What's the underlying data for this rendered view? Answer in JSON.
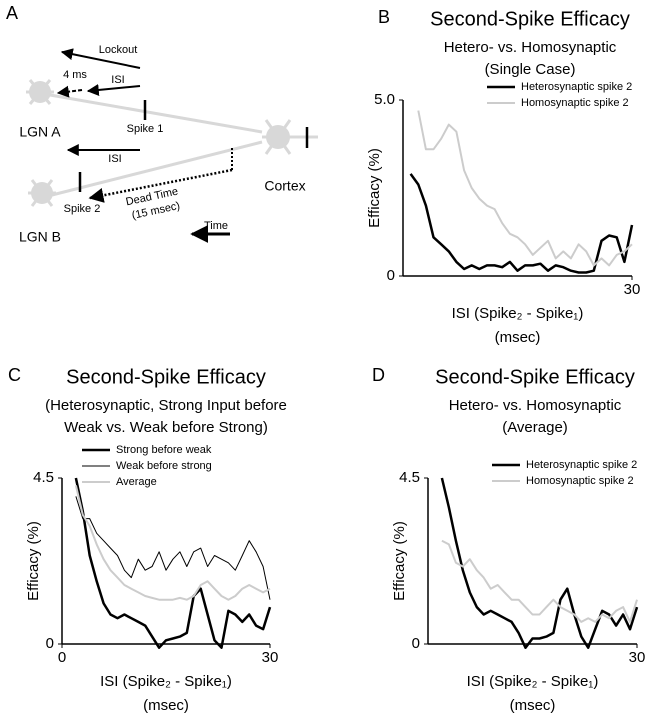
{
  "diagram": {
    "panel": "A",
    "lockout": "Lockout",
    "four_ms": "4 ms",
    "isi_top": "ISI",
    "spike1": "Spike 1",
    "lgn_a": "LGN A",
    "isi_mid": "ISI",
    "cortex": "Cortex",
    "spike2": "Spike 2",
    "dead_time": "Dead Time",
    "dead_time_ms": "(15 msec)",
    "lgn_b": "LGN B",
    "time": "Time"
  },
  "chart_data": [
    {
      "type": "line",
      "panel": "B",
      "title": "Second-Spike Efficacy",
      "subtitle": [
        "Hetero- vs. Homosynaptic",
        "(Single Case)"
      ],
      "y_label": "Efficacy (%)",
      "x_label": [
        "ISI (Spike₂ - Spike₁)",
        "(msec)"
      ],
      "x": [
        1,
        2,
        3,
        4,
        5,
        6,
        7,
        8,
        9,
        10,
        11,
        12,
        13,
        14,
        15,
        16,
        17,
        18,
        19,
        20,
        21,
        22,
        23,
        24,
        25,
        26,
        27,
        28,
        29,
        30
      ],
      "xlim": [
        0,
        30
      ],
      "xticks": [
        30
      ],
      "ylim": [
        0,
        5
      ],
      "yticks": [
        0,
        {
          "value": 5,
          "label": "5.0"
        }
      ],
      "legend": "upper right",
      "series": [
        {
          "name": "Heterosynaptic spike 2",
          "color": "#000000",
          "line_width": 2.5,
          "values": [
            2.9,
            2.6,
            2.0,
            1.1,
            0.9,
            0.7,
            0.4,
            0.2,
            0.3,
            0.2,
            0.3,
            0.3,
            0.25,
            0.4,
            0.15,
            0.3,
            0.3,
            0.35,
            0.15,
            0.3,
            0.25,
            0.15,
            0.1,
            0.1,
            0.15,
            1.0,
            1.15,
            1.1,
            0.4,
            1.45
          ]
        },
        {
          "name": "Homosynaptic spike 2",
          "color": "#cccccc",
          "line_width": 2,
          "values": [
            null,
            4.7,
            3.6,
            3.6,
            3.9,
            4.3,
            4.1,
            3.0,
            2.5,
            2.2,
            2.0,
            1.9,
            1.5,
            1.2,
            1.1,
            0.9,
            0.6,
            0.8,
            1.0,
            0.5,
            0.7,
            0.5,
            0.9,
            0.7,
            0.3,
            0.5,
            0.3,
            0.6,
            0.7,
            0.9
          ]
        }
      ]
    },
    {
      "type": "line",
      "panel": "C",
      "title": "Second-Spike Efficacy",
      "subtitle": [
        "(Heterosynaptic, Strong Input before",
        "Weak vs. Weak before Strong)"
      ],
      "y_label": "Efficacy (%)",
      "x_label": [
        "ISI (Spike₂ - Spike₁)",
        "(msec)"
      ],
      "x": [
        2,
        3,
        4,
        5,
        6,
        7,
        8,
        9,
        10,
        11,
        12,
        13,
        14,
        15,
        16,
        17,
        18,
        19,
        20,
        21,
        22,
        23,
        24,
        25,
        26,
        27,
        28,
        29,
        30
      ],
      "xlim": [
        0,
        30
      ],
      "xticks": [
        0,
        30
      ],
      "ylim": [
        0,
        4.5
      ],
      "yticks": [
        0,
        4.5
      ],
      "legend": "upper left",
      "series": [
        {
          "name": "Strong before weak",
          "color": "#000000",
          "line_width": 2.5,
          "values": [
            4.5,
            3.6,
            2.4,
            1.7,
            1.1,
            0.8,
            0.7,
            0.8,
            0.7,
            0.6,
            0.5,
            0.2,
            -0.1,
            0.1,
            0.15,
            0.2,
            0.3,
            1.3,
            1.5,
            0.8,
            0.1,
            -0.1,
            0.9,
            0.8,
            0.6,
            0.8,
            0.5,
            0.4,
            1.0
          ]
        },
        {
          "name": "Weak before strong",
          "color": "#000000",
          "line_width": 1,
          "values": [
            4.0,
            3.4,
            3.4,
            3.0,
            2.8,
            2.6,
            2.4,
            2.0,
            1.8,
            2.3,
            2.0,
            2.1,
            2.5,
            2.0,
            2.3,
            2.5,
            2.1,
            2.5,
            2.6,
            2.1,
            2.4,
            2.3,
            2.2,
            2.0,
            2.4,
            2.8,
            2.5,
            2.1,
            1.2
          ]
        },
        {
          "name": "Average",
          "color": "#cccccc",
          "line_width": 2,
          "values": [
            4.3,
            3.5,
            3.2,
            2.7,
            2.3,
            2.0,
            1.8,
            1.6,
            1.5,
            1.4,
            1.3,
            1.25,
            1.2,
            1.2,
            1.2,
            1.25,
            1.2,
            1.3,
            1.6,
            1.7,
            1.5,
            1.3,
            1.2,
            1.3,
            1.5,
            1.6,
            1.5,
            1.4,
            1.5
          ]
        }
      ]
    },
    {
      "type": "line",
      "panel": "D",
      "title": "Second-Spike Efficacy",
      "subtitle": [
        "Hetero- vs. Homosynaptic",
        "(Average)"
      ],
      "y_label": "Efficacy (%)",
      "x_label": [
        "ISI (Spike₂ - Spike₁)",
        "(msec)"
      ],
      "x": [
        2,
        3,
        4,
        5,
        6,
        7,
        8,
        9,
        10,
        11,
        12,
        13,
        14,
        15,
        16,
        17,
        18,
        19,
        20,
        21,
        22,
        23,
        24,
        25,
        26,
        27,
        28,
        29,
        30
      ],
      "xlim": [
        0,
        30
      ],
      "xticks": [
        30
      ],
      "ylim": [
        0,
        4.5
      ],
      "yticks": [
        0,
        4.5
      ],
      "legend": "upper right",
      "series": [
        {
          "name": "Heterosynaptic spike 2",
          "color": "#000000",
          "line_width": 2.5,
          "values": [
            4.5,
            3.7,
            2.8,
            2.0,
            1.4,
            1.0,
            0.8,
            0.9,
            0.8,
            0.7,
            0.6,
            0.3,
            -0.1,
            0.15,
            0.15,
            0.2,
            0.3,
            1.2,
            1.5,
            0.8,
            0.2,
            -0.1,
            0.4,
            0.9,
            0.8,
            0.5,
            0.8,
            0.4,
            1.0
          ]
        },
        {
          "name": "Homosynaptic spike 2",
          "color": "#cccccc",
          "line_width": 2,
          "values": [
            2.8,
            2.7,
            2.2,
            2.1,
            2.3,
            2.0,
            1.8,
            1.5,
            1.6,
            1.4,
            1.2,
            1.2,
            1.0,
            0.8,
            0.8,
            1.0,
            1.2,
            1.0,
            0.9,
            0.8,
            0.6,
            0.7,
            0.6,
            0.8,
            0.7,
            0.9,
            1.0,
            0.6,
            1.2
          ]
        }
      ]
    }
  ]
}
